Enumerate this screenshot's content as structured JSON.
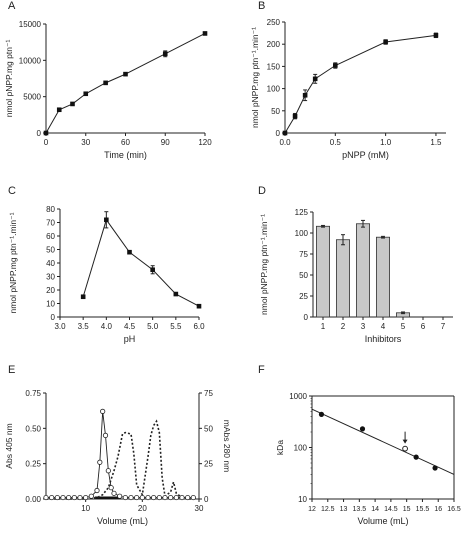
{
  "chart_data": [
    {
      "panel": "A",
      "type": "line",
      "xlabel": "Time (min)",
      "ylabel": "nmol pNPP.mg ptn⁻¹",
      "xlim": [
        0,
        120
      ],
      "ylim": [
        0,
        15000
      ],
      "xticks": [
        "0",
        "30",
        "60",
        "90",
        "120"
      ],
      "yticks": [
        "0",
        "5000",
        "10000",
        "15000"
      ],
      "series": [
        {
          "x": [
            0,
            10,
            20,
            30,
            45,
            60,
            90,
            120
          ],
          "y": [
            0,
            3200,
            4000,
            5400,
            6900,
            8100,
            10900,
            13700
          ],
          "err": [
            0,
            0,
            0,
            0,
            0,
            0,
            400,
            0
          ]
        }
      ]
    },
    {
      "panel": "B",
      "type": "line",
      "xlabel": "pNPP (mM)",
      "ylabel": "nmol pNPP.mg ptn⁻¹.min⁻¹",
      "xlim": [
        0,
        1.6
      ],
      "ylim": [
        0,
        250
      ],
      "xticks": [
        "0.0",
        "0.5",
        "1.0",
        "1.5"
      ],
      "yticks": [
        "0",
        "50",
        "100",
        "150",
        "200",
        "250"
      ],
      "series": [
        {
          "x": [
            0,
            0.1,
            0.2,
            0.3,
            0.5,
            1.0,
            1.5
          ],
          "y": [
            0,
            38,
            85,
            122,
            152,
            205,
            220
          ],
          "err": [
            0,
            6,
            12,
            10,
            6,
            5,
            5
          ]
        }
      ]
    },
    {
      "panel": "C",
      "type": "line",
      "xlabel": "pH",
      "ylabel": "nmol pNPP.mg ptn⁻¹.min⁻¹",
      "xlim": [
        3.0,
        6.0
      ],
      "ylim": [
        0,
        80
      ],
      "xticks": [
        "3.0",
        "3.5",
        "4.0",
        "4.5",
        "5.0",
        "5.5",
        "6.0"
      ],
      "yticks": [
        "0",
        "10",
        "20",
        "30",
        "40",
        "50",
        "60",
        "70",
        "80"
      ],
      "series": [
        {
          "x": [
            3.5,
            4.0,
            4.5,
            5.0,
            5.5,
            6.0
          ],
          "y": [
            15,
            72,
            48,
            35,
            17,
            8
          ],
          "err": [
            1,
            6,
            1,
            3,
            1,
            1
          ]
        }
      ]
    },
    {
      "panel": "D",
      "type": "bar",
      "xlabel": "Inhibitors",
      "ylabel": "nmol pNPP.mg ptn⁻¹.min⁻¹",
      "ylim": [
        0,
        125
      ],
      "categories": [
        "1",
        "2",
        "3",
        "4",
        "5",
        "6",
        "7"
      ],
      "yticks": [
        "0",
        "25",
        "50",
        "75",
        "100",
        "125"
      ],
      "values": [
        108,
        92,
        111,
        95,
        5,
        0,
        0
      ],
      "err": [
        1,
        6,
        4,
        1,
        1,
        0,
        0
      ]
    },
    {
      "panel": "E",
      "type": "line",
      "xlabel": "Volume (mL)",
      "ylabel": "Abs 405 nm",
      "y2label": "mAbs 280 nm",
      "xlim": [
        3,
        30
      ],
      "ylim": [
        0,
        0.75
      ],
      "y2lim": [
        0,
        75
      ],
      "xticks": [
        "10",
        "20",
        "30"
      ],
      "yticks": [
        "0.00",
        "0.25",
        "0.50",
        "0.75"
      ],
      "y2ticks": [
        "0",
        "25",
        "50",
        "75"
      ],
      "series": [
        {
          "axis": "left",
          "style": "open-circles",
          "x": [
            3,
            4,
            5,
            6,
            7,
            8,
            9,
            10,
            11,
            12,
            12.5,
            13,
            13.5,
            14,
            14.5,
            15,
            16,
            17,
            18,
            19,
            20,
            21,
            22,
            23,
            24,
            25,
            26,
            27,
            28,
            29
          ],
          "y": [
            0.01,
            0.01,
            0.01,
            0.01,
            0.01,
            0.01,
            0.01,
            0.01,
            0.02,
            0.06,
            0.26,
            0.62,
            0.45,
            0.2,
            0.08,
            0.04,
            0.02,
            0.01,
            0.01,
            0.01,
            0.01,
            0.01,
            0.01,
            0.01,
            0.01,
            0.01,
            0.01,
            0.01,
            0.01,
            0.01
          ]
        },
        {
          "axis": "right",
          "style": "dotted",
          "x": [
            3,
            10,
            11,
            12,
            13,
            14,
            15,
            15.7,
            16.5,
            17,
            18,
            18.5,
            19,
            20,
            21,
            21.5,
            22,
            22.5,
            23,
            23.5,
            24,
            25,
            25.5,
            26,
            27,
            28,
            29
          ],
          "y": [
            0,
            0,
            0.5,
            1,
            3,
            8,
            20,
            30,
            46,
            47,
            46,
            32,
            10,
            3,
            30,
            45,
            52,
            55,
            47,
            15,
            2,
            5,
            12,
            4,
            1,
            0,
            0
          ]
        }
      ]
    },
    {
      "panel": "F",
      "type": "scatter",
      "xlabel": "Volume (mL)",
      "ylabel": "kDa",
      "xlim": [
        12,
        16.5
      ],
      "ylim": [
        10,
        1000
      ],
      "yscale": "log",
      "xticks": [
        "12",
        "12.5",
        "13",
        "13.5",
        "14",
        "14.5",
        "15",
        "15.5",
        "16",
        "16.5"
      ],
      "yticks": [
        "10",
        "100",
        "1000"
      ],
      "series": [
        {
          "x": [
            12.3,
            13.6,
            15.3,
            15.9
          ],
          "y": [
            440,
            230,
            65,
            40
          ]
        }
      ],
      "fit": {
        "x": [
          12,
          16.5
        ],
        "y": [
          555,
          30
        ]
      },
      "open_point": {
        "x": 14.95,
        "y": 95
      },
      "arrow_x": 14.95
    }
  ],
  "panels": {
    "A": {
      "letter": "A"
    },
    "B": {
      "letter": "B"
    },
    "C": {
      "letter": "C"
    },
    "D": {
      "letter": "D"
    },
    "E": {
      "letter": "E"
    },
    "F": {
      "letter": "F"
    }
  }
}
